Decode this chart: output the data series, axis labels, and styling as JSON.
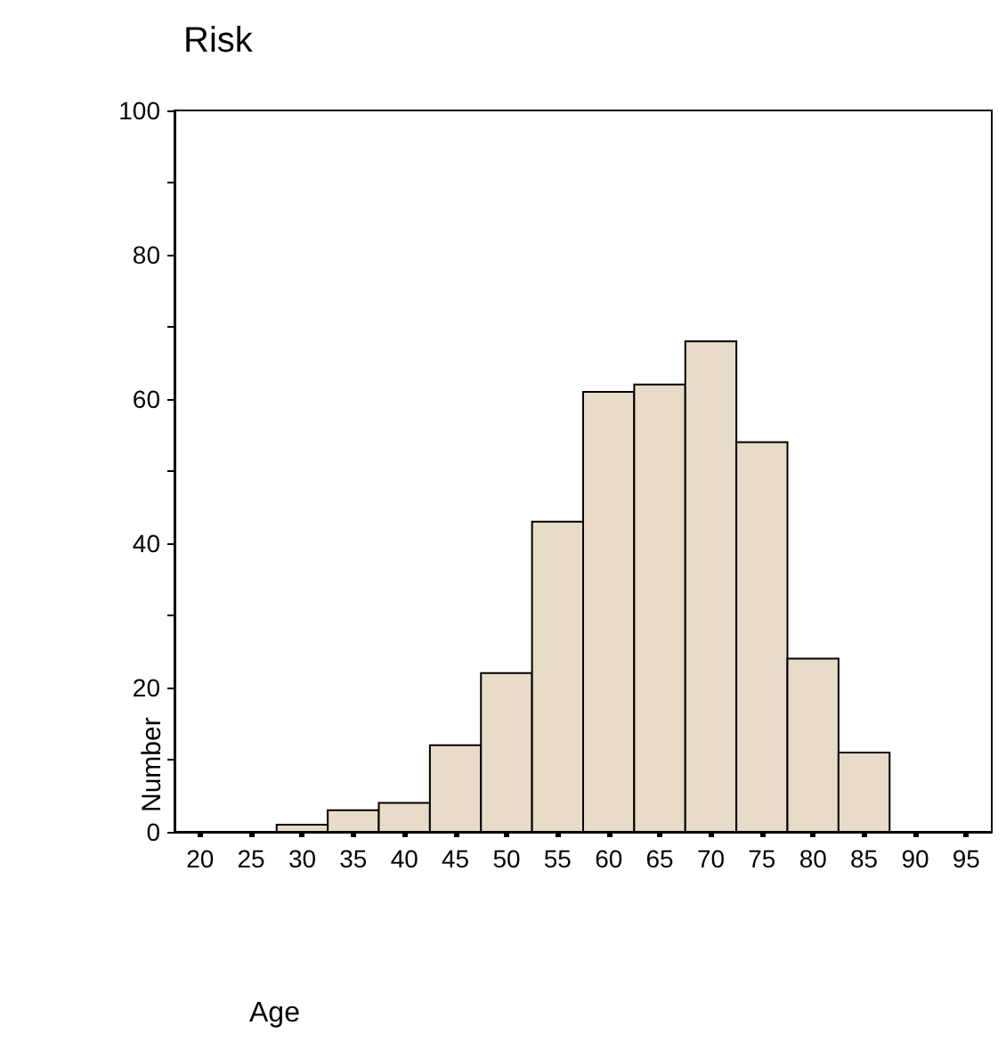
{
  "chart_data": {
    "type": "histogram",
    "title": "Risk",
    "xlabel": "Age",
    "ylabel": "Number",
    "bins": [
      27.5,
      32.5,
      37.5,
      42.5,
      47.5,
      52.5,
      57.5,
      62.5,
      67.5,
      72.5,
      77.5,
      82.5,
      87.5
    ],
    "values": [
      1,
      3,
      4,
      12,
      22,
      43,
      61,
      62,
      68,
      54,
      24,
      11
    ],
    "color": "#e8dcc8",
    "xlim": [
      17.5,
      97.5
    ],
    "xticks": [
      20,
      25,
      30,
      35,
      40,
      45,
      50,
      55,
      60,
      65,
      70,
      75,
      80,
      85,
      90,
      95
    ],
    "ylim": [
      0,
      100
    ],
    "yticks": [
      0,
      {
        "value": 10,
        "label": null
      },
      20,
      {
        "value": 30,
        "label": null
      },
      40,
      {
        "value": 50,
        "label": null
      },
      60,
      {
        "value": 70,
        "label": null
      },
      80,
      {
        "value": 90,
        "label": null
      },
      100
    ]
  }
}
